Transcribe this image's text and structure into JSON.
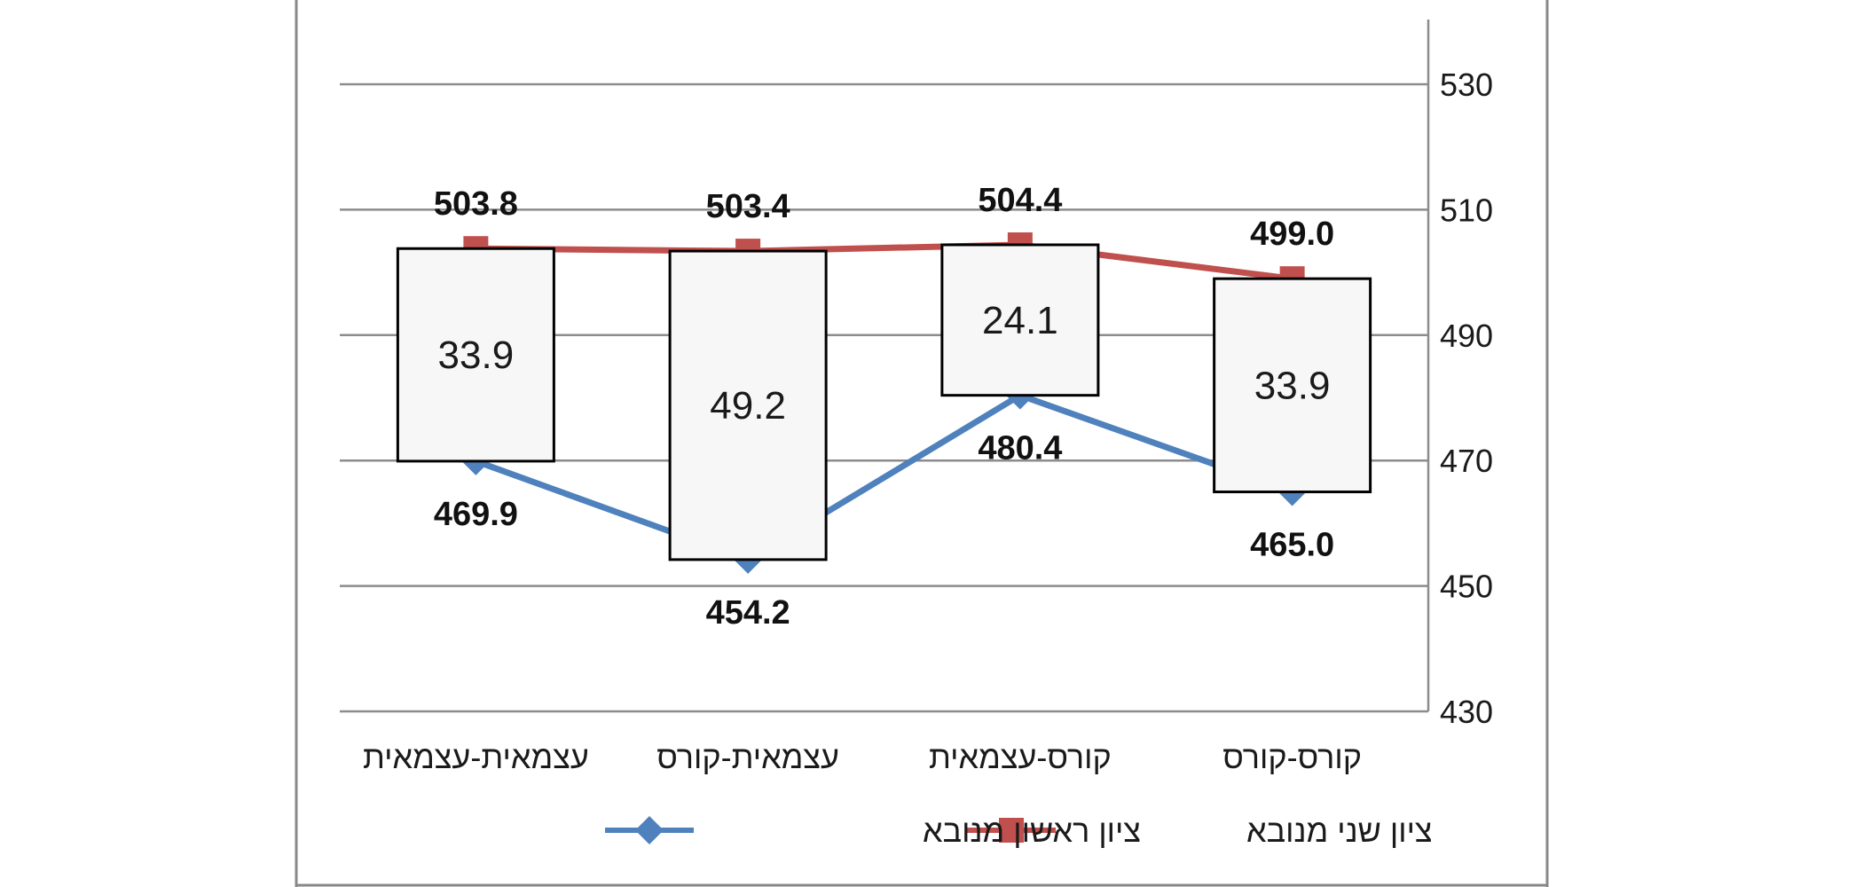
{
  "chart_data": {
    "type": "line",
    "categories": [
      "עצמאית-עצמאית",
      "עצמאית-קורס",
      "קורס-עצמאית",
      "קורס-קורס"
    ],
    "series": [
      {
        "name": "ציון ראשון מנובא",
        "values": [
          469.9,
          454.2,
          480.4,
          465.0
        ],
        "color": "#4f81bd",
        "marker": "diamond"
      },
      {
        "name": "ציון שני מנובא",
        "values": [
          503.8,
          503.4,
          504.4,
          499.0
        ],
        "color": "#c0504d",
        "marker": "square"
      }
    ],
    "value_labels": {
      "first": [
        "469.9",
        "454.2",
        "480.4",
        "465.0"
      ],
      "second": [
        "503.8",
        "503.4",
        "504.4",
        "499.0"
      ]
    },
    "differences": [
      "33.9",
      "49.2",
      "24.1",
      "33.9"
    ],
    "yticks": [
      "430",
      "450",
      "470",
      "490",
      "510",
      "530"
    ],
    "ylim": [
      430,
      530
    ],
    "y_axis_side": "right",
    "grid": true,
    "legend_position": "bottom"
  }
}
